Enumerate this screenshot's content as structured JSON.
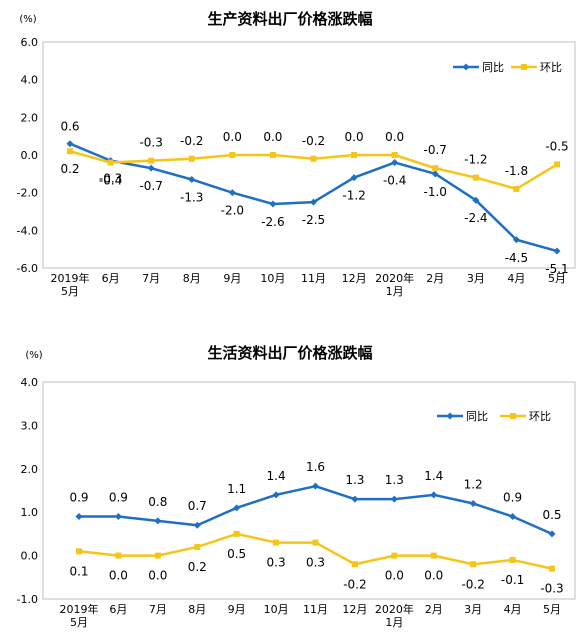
{
  "chart_data": [
    {
      "type": "line",
      "title": "生产资料出厂价格涨跌幅",
      "ylabel": "(%)",
      "ylim": [
        -6.0,
        6.0
      ],
      "yticks": [
        "6.0",
        "4.0",
        "2.0",
        "0.0",
        "-2.0",
        "-4.0",
        "-6.0"
      ],
      "categories": [
        "2019年|5月",
        "6月",
        "7月",
        "8月",
        "9月",
        "10月",
        "11月",
        "12月",
        "2020年|1月",
        "2月",
        "3月",
        "4月",
        "5月"
      ],
      "series": [
        {
          "name": "同比",
          "color": "#1F6FC5",
          "values": [
            0.6,
            -0.3,
            -0.7,
            -1.3,
            -2.0,
            -2.6,
            -2.5,
            -1.2,
            -0.4,
            -1.0,
            -2.4,
            -4.5,
            -5.1
          ],
          "labels": [
            "0.6",
            "-0.3",
            "-0.7",
            "-1.3",
            "-2.0",
            "-2.6",
            "-2.5",
            "-1.2",
            "-0.4",
            "-1.0",
            "-2.4",
            "-4.5",
            "-5.1"
          ]
        },
        {
          "name": "环比",
          "color": "#F5C518",
          "values": [
            0.2,
            -0.4,
            -0.3,
            -0.2,
            0.0,
            0.0,
            -0.2,
            0.0,
            0.0,
            -0.7,
            -1.2,
            -1.8,
            -0.5
          ],
          "labels": [
            "0.2",
            "-0.4",
            "-0.3",
            "-0.2",
            "0.0",
            "0.0",
            "-0.2",
            "0.0",
            "0.0",
            "-0.7",
            "-1.2",
            "-1.8",
            "-0.5"
          ]
        }
      ],
      "legend": "top-right",
      "grid": false
    },
    {
      "type": "line",
      "title": "生活资料出厂价格涨跌幅",
      "ylabel": "(%)",
      "ylim": [
        -1.0,
        4.0
      ],
      "yticks": [
        "4.0",
        "3.0",
        "2.0",
        "1.0",
        "0.0",
        "-1.0"
      ],
      "categories": [
        "2019年|5月",
        "6月",
        "7月",
        "8月",
        "9月",
        "10月",
        "11月",
        "12月",
        "2020年|1月",
        "2月",
        "3月",
        "4月",
        "5月"
      ],
      "series": [
        {
          "name": "同比",
          "color": "#1F6FC5",
          "values": [
            0.9,
            0.9,
            0.8,
            0.7,
            1.1,
            1.4,
            1.6,
            1.3,
            1.3,
            1.4,
            1.2,
            0.9,
            0.5
          ],
          "labels": [
            "0.9",
            "0.9",
            "0.8",
            "0.7",
            "1.1",
            "1.4",
            "1.6",
            "1.3",
            "1.3",
            "1.4",
            "1.2",
            "0.9",
            "0.5"
          ]
        },
        {
          "name": "环比",
          "color": "#F5C518",
          "values": [
            0.1,
            0.0,
            0.0,
            0.2,
            0.5,
            0.3,
            0.3,
            -0.2,
            0.0,
            0.0,
            -0.2,
            -0.1,
            -0.3
          ],
          "labels": [
            "0.1",
            "0.0",
            "0.0",
            "0.2",
            "0.5",
            "0.3",
            "0.3",
            "-0.2",
            "0.0",
            "0.0",
            "-0.2",
            "-0.1",
            "-0.3"
          ]
        }
      ],
      "legend": "top-right",
      "grid": false
    }
  ]
}
